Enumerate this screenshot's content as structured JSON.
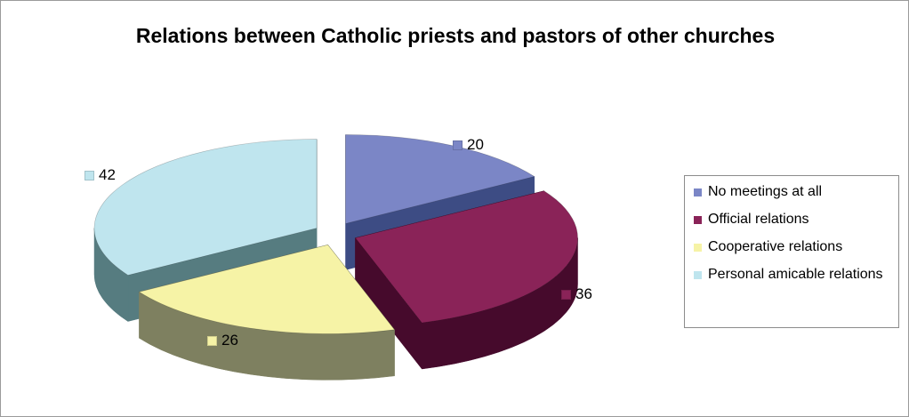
{
  "chart_data": {
    "type": "pie",
    "title": "Relations between Catholic priests and pastors of other churches",
    "categories": [
      "No meetings at all",
      "Official relations",
      "Cooperative relations",
      "Personal amicable relations"
    ],
    "values": [
      20,
      36,
      26,
      42
    ],
    "data_labels": [
      "20",
      "36",
      "26",
      "42"
    ],
    "colors": [
      "#7b86c6",
      "#8a2358",
      "#f6f3a6",
      "#bfe5ee"
    ],
    "side_colors": [
      "#3d4c84",
      "#460a2c",
      "#7e8060",
      "#567c80"
    ],
    "legend_placement": "right",
    "exploded": true,
    "three_d": true
  }
}
